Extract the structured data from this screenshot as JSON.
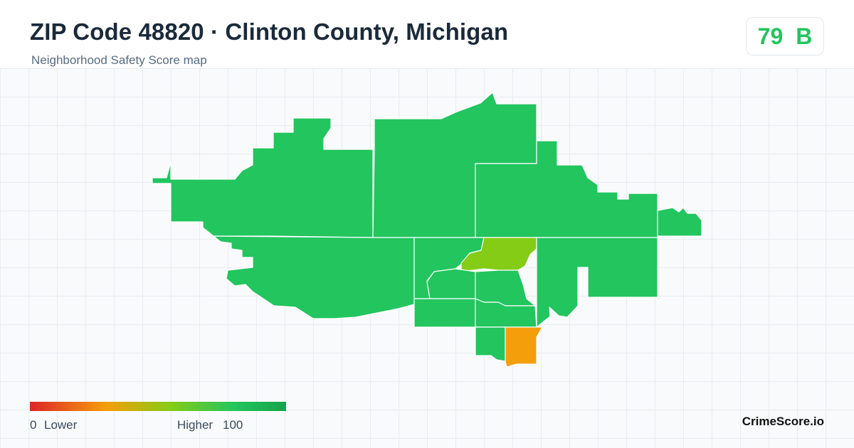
{
  "header": {
    "title": "ZIP Code 48820 · Clinton County, Michigan",
    "subtitle": "Neighborhood Safety Score map"
  },
  "score": {
    "value": "79",
    "grade": "B",
    "color": "#22c55e"
  },
  "legend": {
    "min": "0",
    "min_label": "Lower",
    "max_label": "Higher",
    "max": "100",
    "colors": [
      "#dc2626",
      "#f59e0b",
      "#84cc16",
      "#22c55e",
      "#16a34a"
    ]
  },
  "map": {
    "colors": {
      "safe": "#22c55e",
      "moderate": "#84cc16",
      "caution": "#f59e0b",
      "border": "#ffffff"
    },
    "regions": [
      {
        "name": "northwest-area",
        "level": "safe"
      },
      {
        "name": "north-central-area",
        "level": "safe"
      },
      {
        "name": "northeast-area",
        "level": "safe"
      },
      {
        "name": "east-spur-area",
        "level": "safe"
      },
      {
        "name": "southwest-area",
        "level": "safe"
      },
      {
        "name": "central-west-area",
        "level": "safe"
      },
      {
        "name": "central-moderate-area",
        "level": "moderate"
      },
      {
        "name": "inner-west-area",
        "level": "safe"
      },
      {
        "name": "inner-center-area",
        "level": "safe"
      },
      {
        "name": "east-central-area",
        "level": "safe"
      },
      {
        "name": "southeast-area",
        "level": "safe"
      },
      {
        "name": "south-west-area",
        "level": "safe"
      },
      {
        "name": "south-center-area",
        "level": "safe"
      },
      {
        "name": "south-tip-area",
        "level": "safe"
      },
      {
        "name": "south-caution-area",
        "level": "caution"
      }
    ]
  },
  "brand": "CrimeScore.io"
}
